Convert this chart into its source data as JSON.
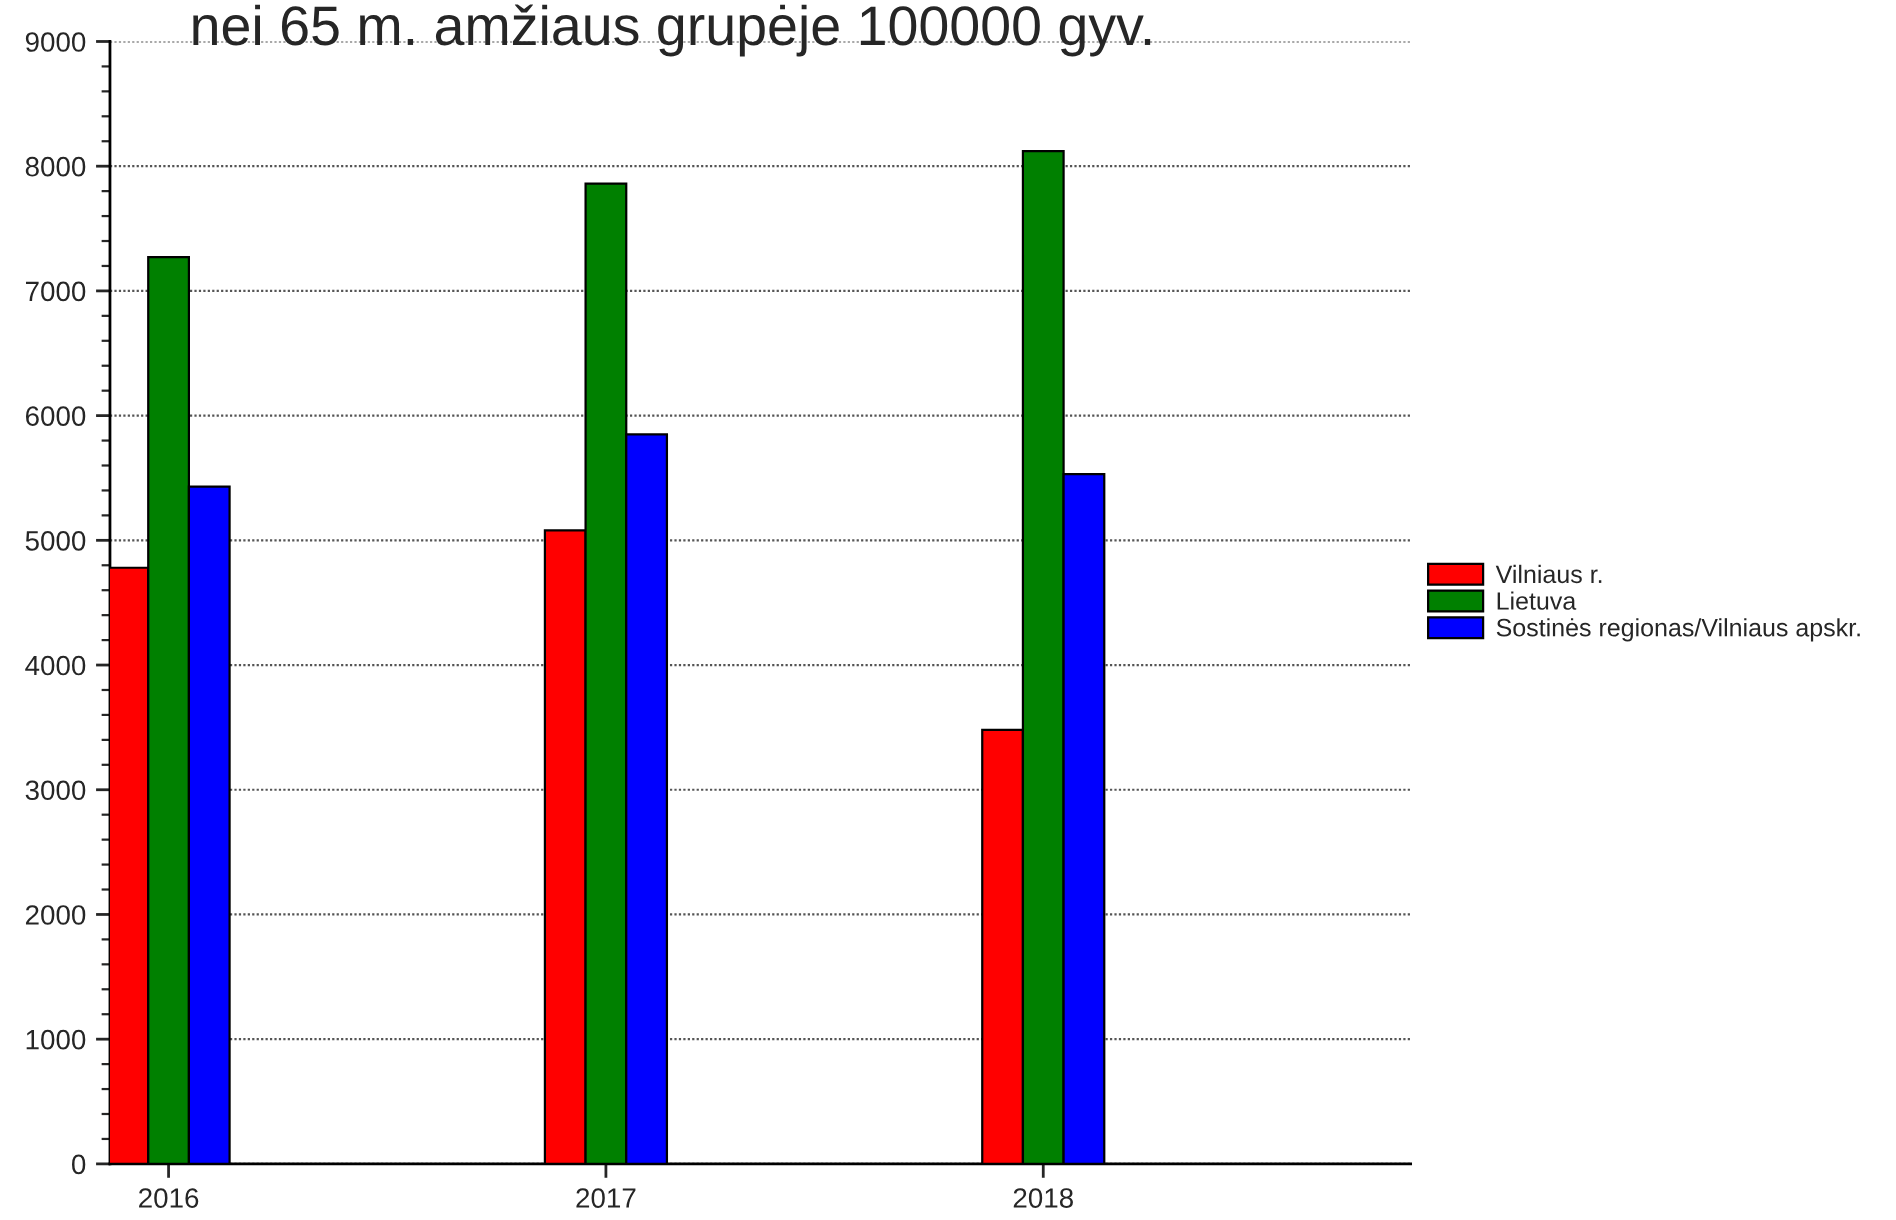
{
  "chart_data": {
    "type": "bar",
    "title": "nei 65 m. amžiaus grupėje 100000 gyv.",
    "categories": [
      "2016",
      "2017",
      "2018"
    ],
    "series": [
      {
        "name": "Vilniaus r.",
        "color": "#ff0000",
        "values": [
          4780,
          5080,
          3480
        ]
      },
      {
        "name": "Lietuva",
        "color": "#008000",
        "values": [
          7270,
          7860,
          8120
        ]
      },
      {
        "name": "Sostinės regionas/Vilniaus apskr.",
        "color": "#0000ff",
        "values": [
          5430,
          5850,
          5530
        ]
      }
    ],
    "ylim": [
      0,
      9000
    ],
    "yticks": [
      0,
      1000,
      2000,
      3000,
      4000,
      5000,
      6000,
      7000,
      8000,
      9000
    ],
    "grid": "y",
    "legend": "right"
  }
}
